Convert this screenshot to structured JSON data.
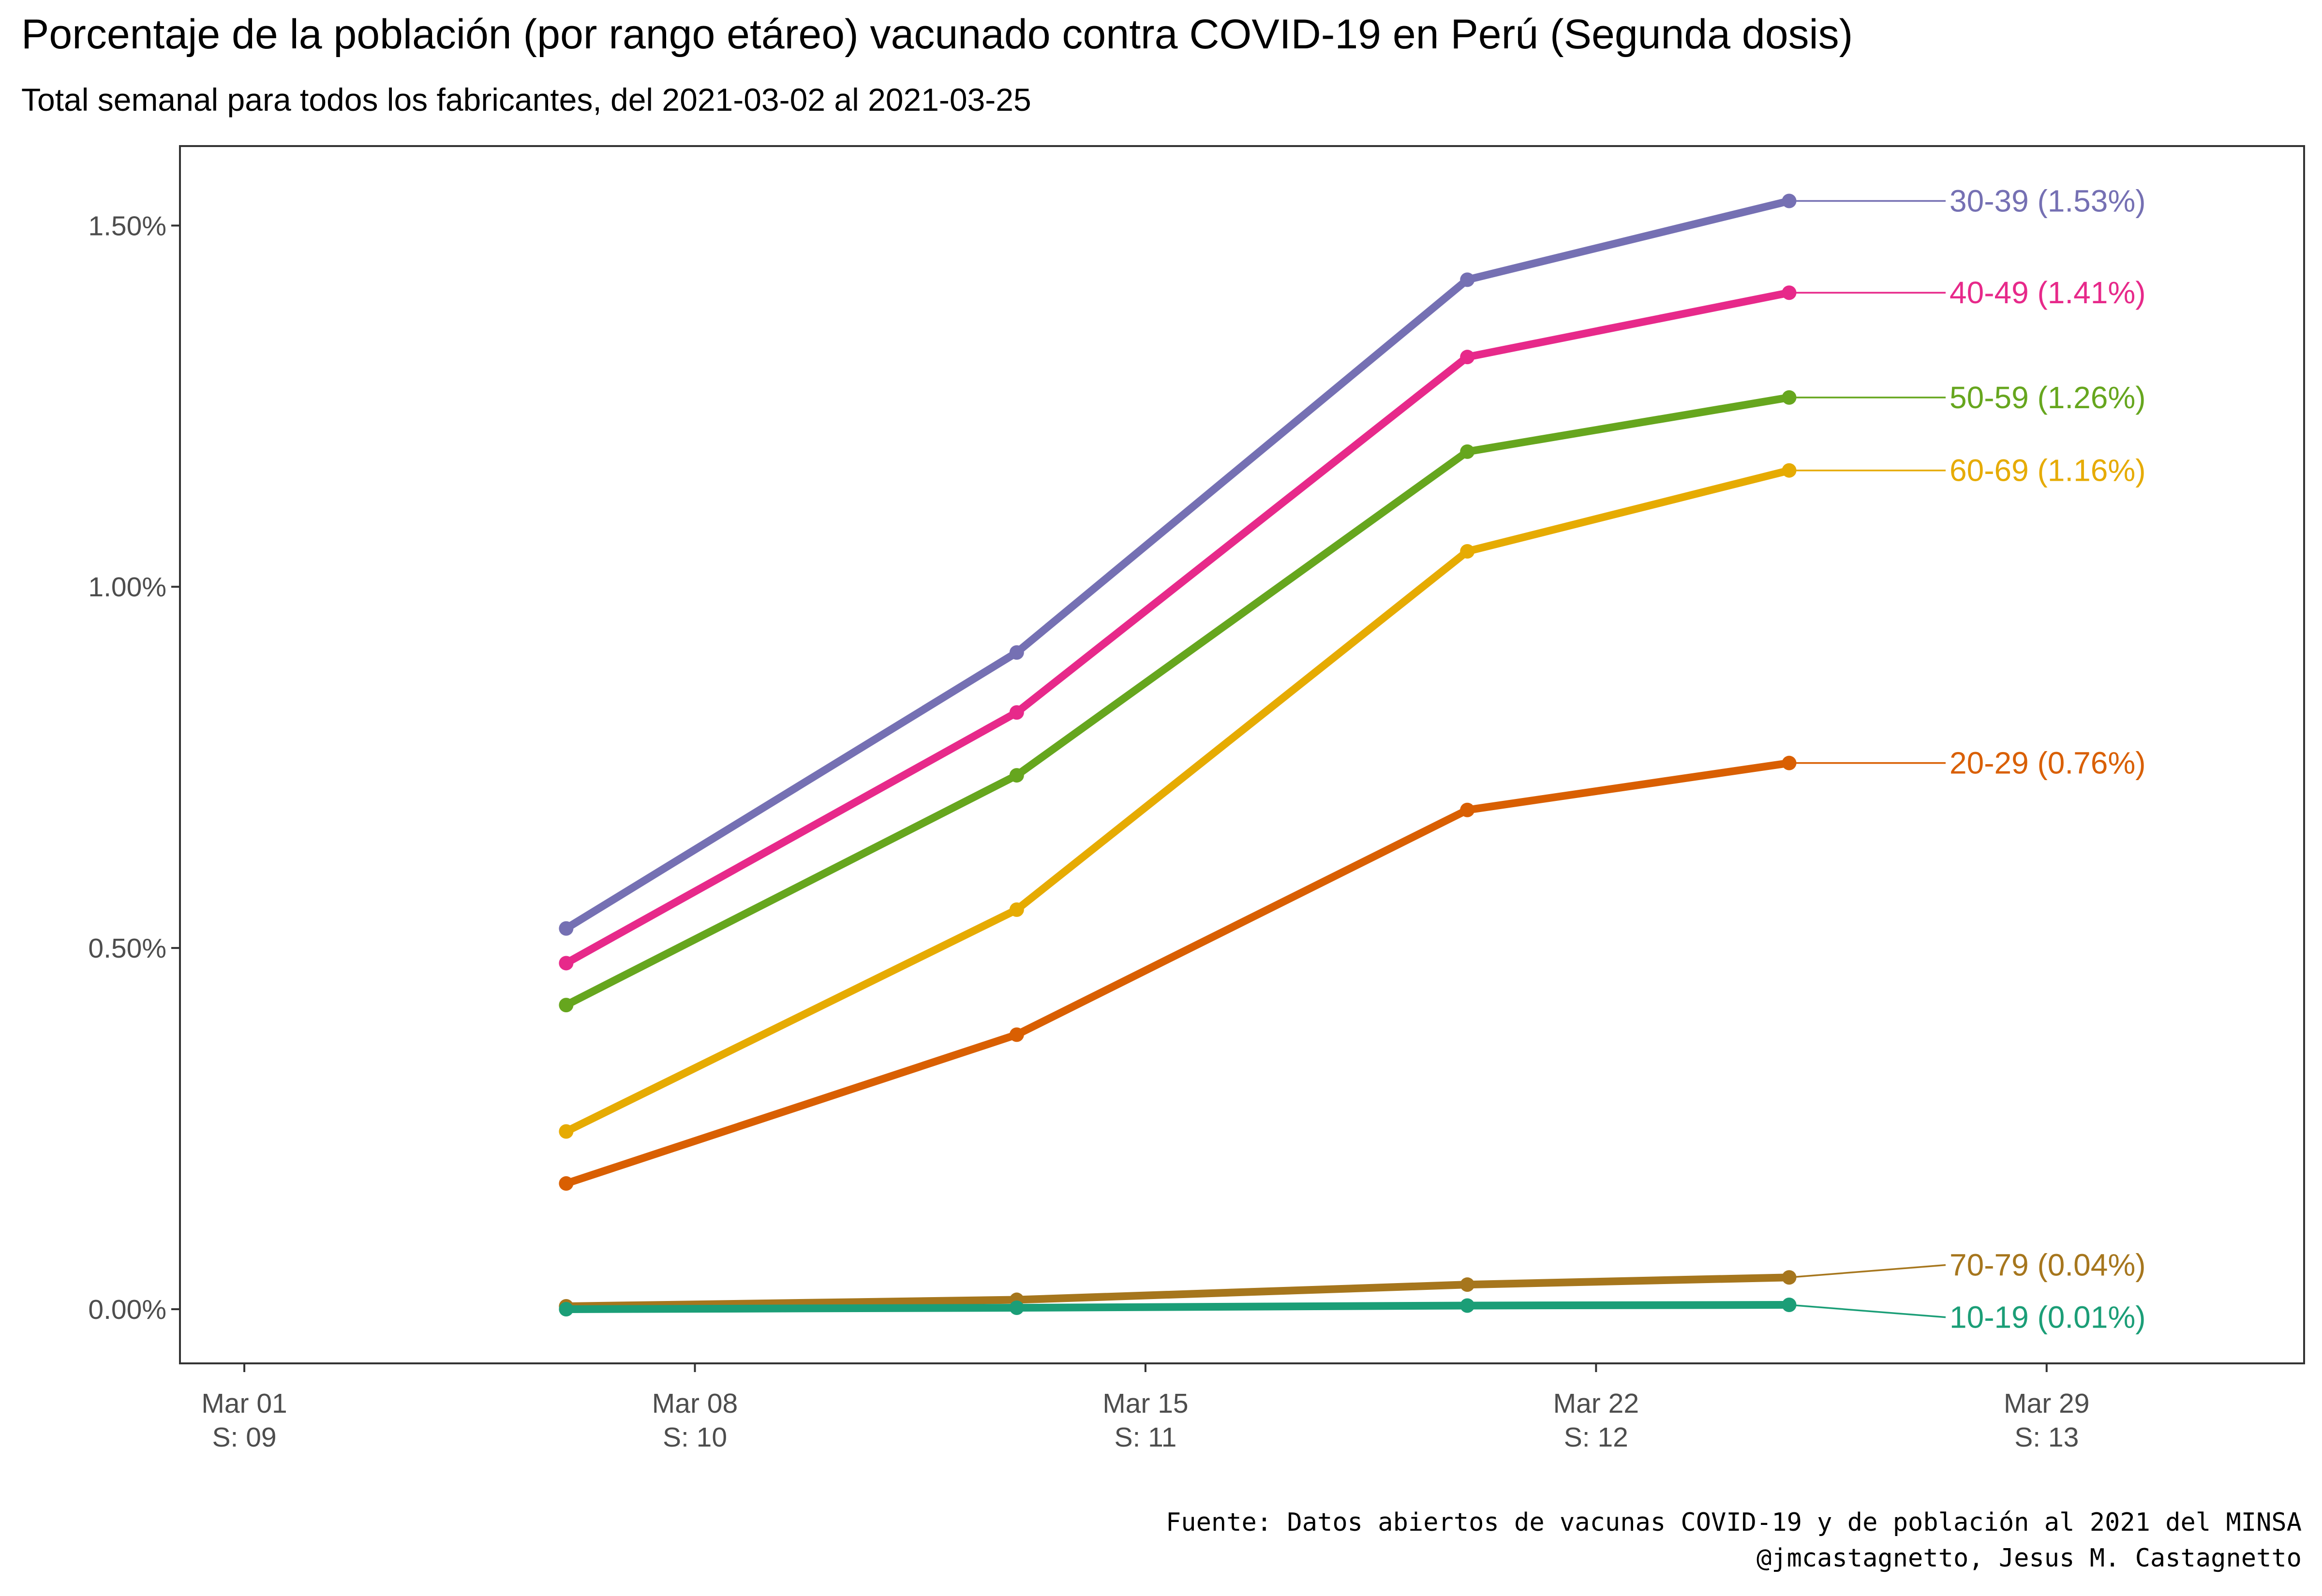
{
  "chart_data": {
    "type": "line",
    "title": "Porcentaje de la población (por rango etáreo) vacunado contra COVID-19 en Perú (Segunda dosis)",
    "subtitle": "Total semanal para todos los fabricantes, del 2021-03-02 al 2021-03-25",
    "caption": [
      "Fuente: Datos abiertos de vacunas COVID-19 y de población al 2021 del MINSA",
      "@jmcastagnetto, Jesus M. Castagnetto"
    ],
    "x_ticks": [
      {
        "date": "2021-03-01",
        "line1": "Mar 01",
        "line2": "S: 09"
      },
      {
        "date": "2021-03-08",
        "line1": "Mar 08",
        "line2": "S: 10"
      },
      {
        "date": "2021-03-15",
        "line1": "Mar 15",
        "line2": "S: 11"
      },
      {
        "date": "2021-03-22",
        "line1": "Mar 22",
        "line2": "S: 12"
      },
      {
        "date": "2021-03-29",
        "line1": "Mar 29",
        "line2": "S: 13"
      }
    ],
    "xlim": [
      "2021-02-28",
      "2021-04-02"
    ],
    "y_ticks": [
      {
        "value": 0.0,
        "label": "0.00%"
      },
      {
        "value": 0.5,
        "label": "0.50%"
      },
      {
        "value": 1.0,
        "label": "1.00%"
      },
      {
        "value": 1.5,
        "label": "1.50%"
      }
    ],
    "ylim": [
      -0.075,
      1.61
    ],
    "grid": false,
    "legend": "direct labels at right",
    "x": [
      "2021-03-06",
      "2021-03-13",
      "2021-03-20",
      "2021-03-25"
    ],
    "series": [
      {
        "name": "30-39",
        "label": "30-39 (1.53%)",
        "color": "#7570b3",
        "values": [
          0.527,
          0.909,
          1.425,
          1.534
        ]
      },
      {
        "name": "40-49",
        "label": "40-49 (1.41%)",
        "color": "#e7298a",
        "values": [
          0.479,
          0.826,
          1.318,
          1.407
        ]
      },
      {
        "name": "50-59",
        "label": "50-59 (1.26%)",
        "color": "#66a61e",
        "values": [
          0.421,
          0.739,
          1.187,
          1.262
        ]
      },
      {
        "name": "60-69",
        "label": "60-69 (1.16%)",
        "color": "#e6ab02",
        "values": [
          0.246,
          0.553,
          1.049,
          1.161
        ]
      },
      {
        "name": "20-29",
        "label": "20-29 (0.76%)",
        "color": "#d95f02",
        "values": [
          0.174,
          0.38,
          0.691,
          0.756
        ]
      },
      {
        "name": "70-79",
        "label": "70-79 (0.04%)",
        "color": "#a6761d",
        "values": [
          0.004,
          0.013,
          0.034,
          0.044
        ]
      },
      {
        "name": "10-19",
        "label": "10-19 (0.01%)",
        "color": "#1b9e77",
        "values": [
          0.0,
          0.002,
          0.005,
          0.006
        ]
      }
    ]
  }
}
